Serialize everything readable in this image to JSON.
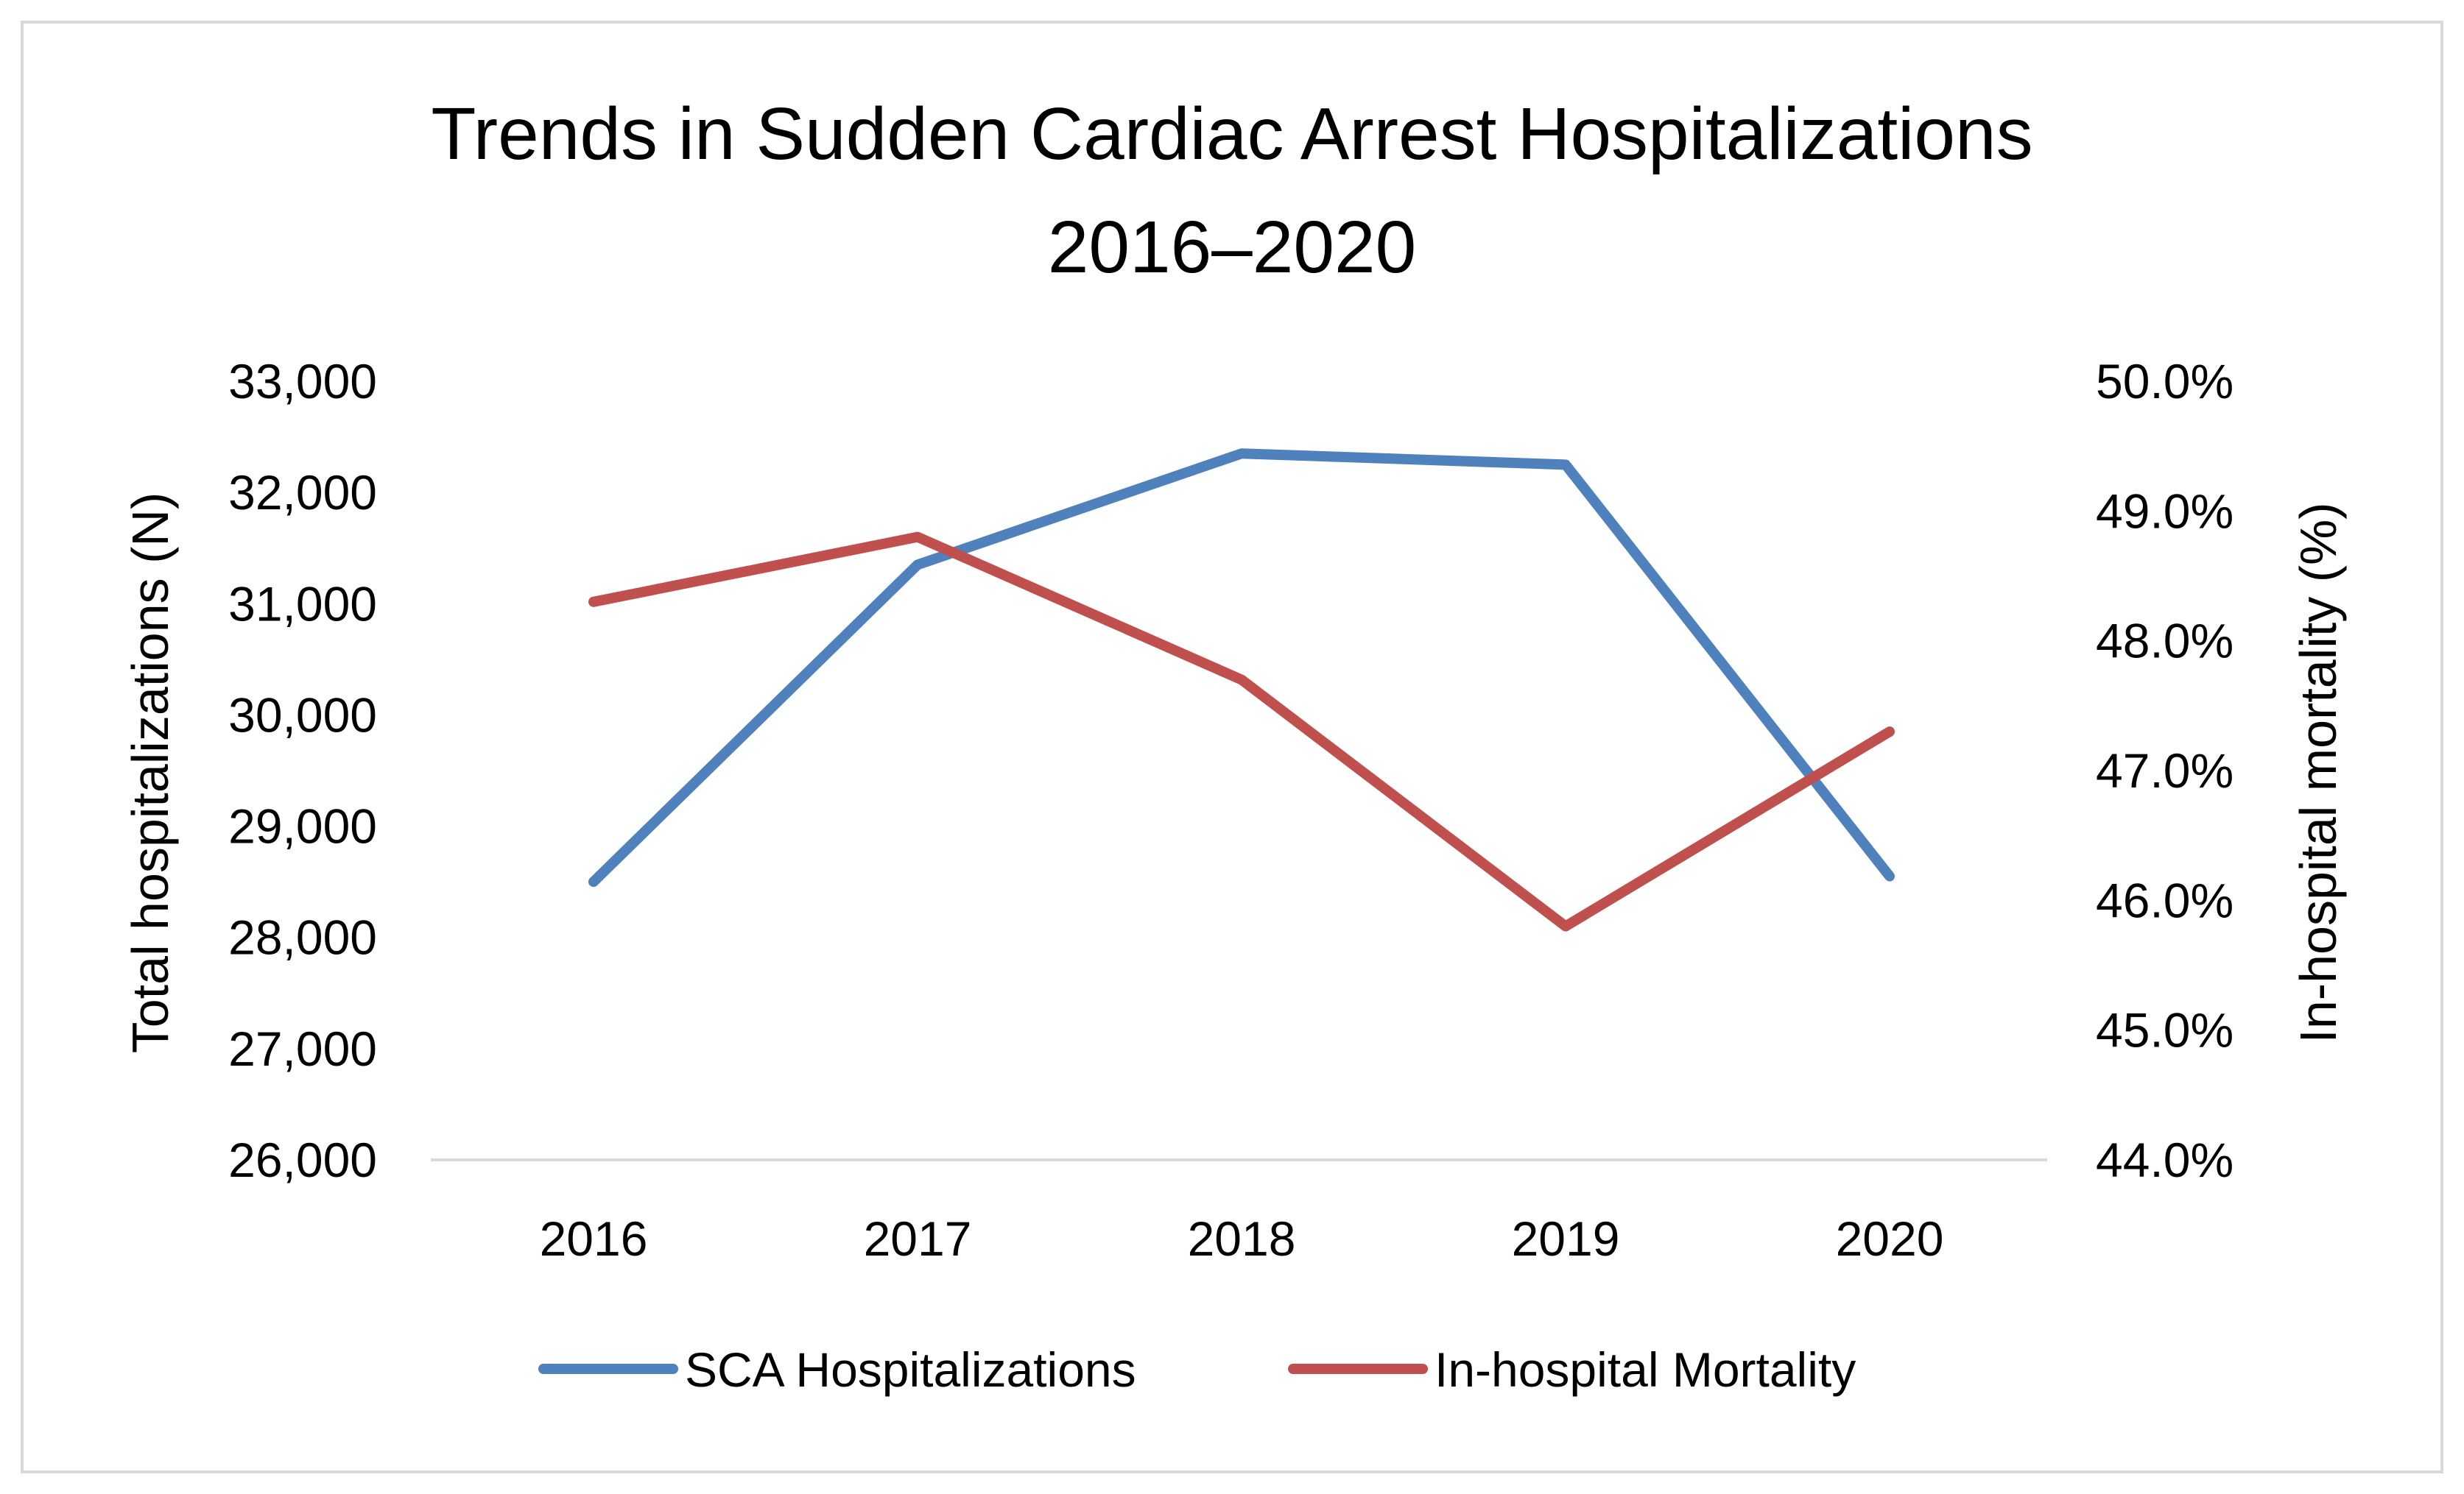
{
  "chart_data": {
    "type": "line",
    "title_lines": [
      "Trends in Sudden Cardiac Arrest Hospitalizations",
      "2016–2020"
    ],
    "categories": [
      "2016",
      "2017",
      "2018",
      "2019",
      "2020"
    ],
    "y_left": {
      "label": "Total hospitalizations (N)",
      "min": 26000,
      "max": 33000,
      "step": 1000,
      "tick_labels": [
        "26,000",
        "27,000",
        "28,000",
        "29,000",
        "30,000",
        "31,000",
        "32,000",
        "33,000"
      ]
    },
    "y_right": {
      "label": "In-hospital mortality (%)",
      "min": 44.0,
      "max": 50.0,
      "step": 1.0,
      "tick_labels": [
        "44.0%",
        "45.0%",
        "46.0%",
        "47.0%",
        "48.0%",
        "49.0%",
        "50.0%"
      ]
    },
    "series": [
      {
        "name": "SCA Hospitalizations",
        "axis": "left",
        "color": "#4f81bd",
        "values": [
          28500,
          31350,
          32350,
          32250,
          28550
        ]
      },
      {
        "name": "In-hospital Mortality",
        "axis": "right",
        "color": "#c0504d",
        "values": [
          48.3,
          48.8,
          47.7,
          45.8,
          47.3
        ]
      }
    ],
    "grid": false,
    "legend_position": "bottom"
  }
}
